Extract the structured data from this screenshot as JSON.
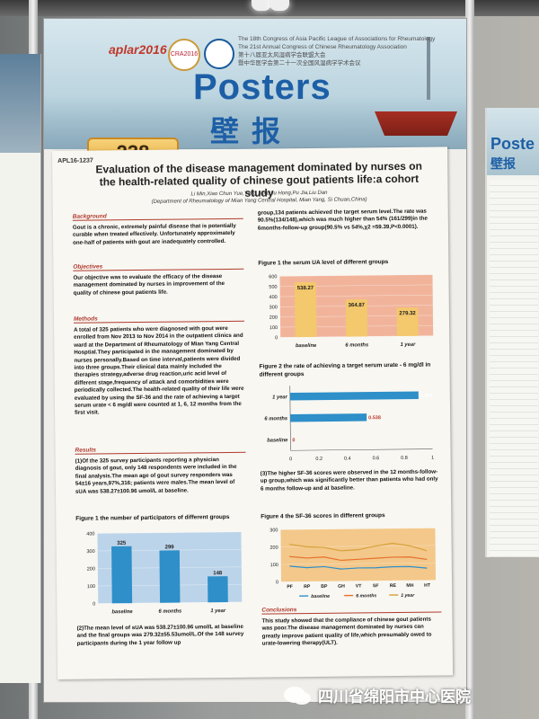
{
  "header": {
    "logo_text": "aplar2016",
    "cra_text": "CRA2016",
    "congress_lines": [
      "The 18th Congress of Asia Pacific League of Associations for Rheumatology",
      "The 21st Annual Congress of Chinese Rheumatology Association",
      "第十八届亚太风湿病学会联盟大会",
      "暨中华医学会第二十一次全国风湿病学学术会议"
    ],
    "posters_en": "Posters",
    "posters_cn": "壁报",
    "poster_number": "238"
  },
  "poster": {
    "code": "APL16-1237",
    "title": "Evaluation of the disease management dominated by nurses on the health-related quality of chinese gout patients life:a cohort study",
    "authors": "Li Min,Xiao Chun Yue,Yang Jing,Liu Hong,Pu Jia,Liu Dan",
    "affiliation": "(Department of Rheumatology of Mian Yang Central Hospital, Mian Yang, Si Chuan,China)",
    "background_heading": "Background",
    "background_text": "Gout is a chronic, extremely painful disease that is potentially curable when treated effectively. Unfortunately approximately one-half of patients with gout are inadequately controlled.",
    "objectives_heading": "Objectives",
    "objectives_text": "Our objective was to evaluate the efficacy of the disease management dominated by nurses in improvement of the quality of chinese gout patients life.",
    "methods_heading": "Methods",
    "methods_text": "A total of 325 patients who were diagnosed with gout were enrolled from Nov 2013 to Nov 2014 in the outpatient clinics and ward at the Department of Rheumatology of Mian Yang Central Hosptial.They participated in the management dominated by nurses personally.Based on time interval,patients were divided into three groups.Their clinical data mainly included the therapies strategy,adverse drug reaction,uric acid level of different stage,frequency of attack and comorbidities were periodically collected.The health-related quality of their life were evaluated by using the SF-36 and the rate of achieving a target serum urate < 6 mg/dl were counted at 1, 6, 12 months from the first visit.",
    "results_heading": "Results",
    "results_text1": "(1)Of the 325 survey participants reporting a physician diagnosis of gout, only 148 respondents were included in the final analysis.The mean age of gout survey responders was 54±16 years,97%,316; patients were males.The mean level of sUA was 538.27±100.96 umol/L at baseline.",
    "fig1_title": "Figure 1  the number of participators of different groups",
    "results_text2": "(2)The mean level of sUA was 538.27±100.96 umol/L at baseline and the final groups was 279.32±55.53umol/L.Of the 148 survey participants during the 1 year follow up",
    "right_text1": "group,134 patients achieved the target serum level.The rate was 90.5%(134/148),which was much higher than 54% (161/299)in the 6months-follow-up group(90.5% vs 54%,χ2 =59.39,P<0.0001).",
    "fig_ua_title": "Figure 1  the serum UA level of different groups",
    "fig2_title": "Figure 2  the rate of achieving a target serum urate - 6 mg/dl in different groups",
    "results_text3": "(3)The higher SF-36 scores were observed in the 12 months-follow-up group,which was significantly better than patients who had only 6 months follow-up and at baseline.",
    "fig4_title": "Figure 4  the SF-36 scores in different groups",
    "conclusions_heading": "Conclusions",
    "conclusions_text": "This study showed that the compliance of chinese gout patients was poor.The disease management dominated by nurses can greatly improve patient quality of life,which presumably owed to urate-lowering therapy(ULT)."
  },
  "right_poster": {
    "title_en": "Poste",
    "title_cn": "壁报"
  },
  "watermark": {
    "icon": "wechat-icon",
    "text": "四川省绵阳市中心医院"
  },
  "chart_data": [
    {
      "type": "bar",
      "id": "participants",
      "categories": [
        "baseline",
        "6 months",
        "1 year"
      ],
      "values": [
        325,
        299,
        148
      ],
      "ylim": [
        0,
        400
      ],
      "yticks": [
        "0",
        "100",
        "200",
        "300",
        "400"
      ],
      "bar_color": "#2e8fc9",
      "background": "#bcd4ea"
    },
    {
      "type": "bar",
      "id": "serum-ua",
      "categories": [
        "baseline",
        "6 months",
        "1 year"
      ],
      "values": [
        538.27,
        364.87,
        279.32
      ],
      "labels": [
        "538.27",
        "364.87",
        "279.32"
      ],
      "ylim": [
        0,
        600
      ],
      "yticks": [
        "0",
        "100",
        "200",
        "300",
        "400",
        "500",
        "600"
      ],
      "bar_color": "#f4c86c",
      "background": "#f1b49b"
    },
    {
      "type": "bar",
      "id": "target-rate",
      "orientation": "horizontal",
      "categories": [
        "1 year",
        "6 months",
        "baseline"
      ],
      "values": [
        0.905,
        0.538,
        0
      ],
      "labels": [
        "0.905",
        "0.538",
        "0"
      ],
      "xlim": [
        0,
        1
      ],
      "xticks": [
        "0",
        "0.2",
        "0.4",
        "0.6",
        "0.8",
        "1"
      ],
      "bar_color": "#2e8fc9",
      "label_bg": "#1d6d9e"
    },
    {
      "type": "line",
      "id": "sf36",
      "x": [
        "PF",
        "RP",
        "BP",
        "GH",
        "VT",
        "SF",
        "RE",
        "MH",
        "HT"
      ],
      "ylim": [
        0,
        300
      ],
      "yticks": [
        "0",
        "100",
        "200",
        "300"
      ],
      "series": [
        {
          "name": "baseline",
          "values": [
            90,
            80,
            85,
            70,
            75,
            75,
            80,
            80,
            70
          ],
          "color": "#2e8fc9"
        },
        {
          "name": "6 months",
          "values": [
            145,
            135,
            140,
            120,
            125,
            130,
            135,
            135,
            120
          ],
          "color": "#e7702c"
        },
        {
          "name": "1 year",
          "values": [
            215,
            200,
            195,
            175,
            180,
            200,
            215,
            200,
            170
          ],
          "color": "#d7a13a"
        }
      ],
      "background": "#f3c88a"
    }
  ]
}
